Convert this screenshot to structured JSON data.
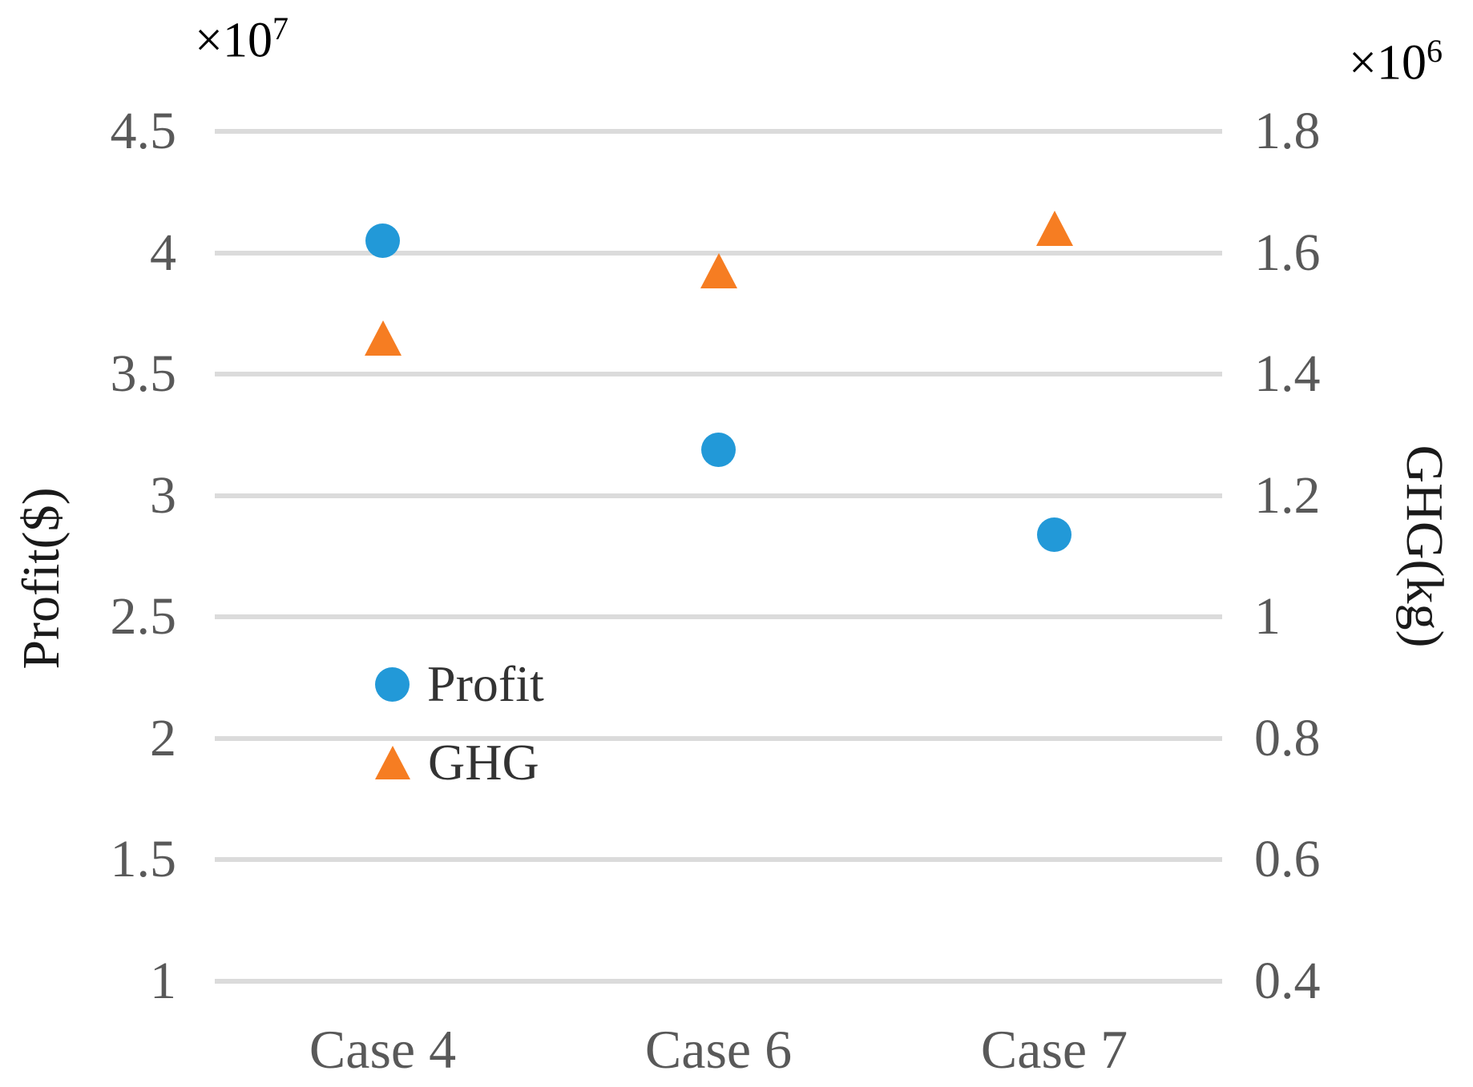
{
  "chart_data": {
    "type": "scatter",
    "categories": [
      "Case 4",
      "Case 6",
      "Case 7"
    ],
    "series": [
      {
        "name": "Profit",
        "axis": "left",
        "marker": "circle",
        "color": "#2299D8",
        "values": [
          4.05,
          3.19,
          2.84
        ],
        "value_scale": "x10^7"
      },
      {
        "name": "GHG",
        "axis": "right",
        "marker": "triangle",
        "color": "#F67D22",
        "values": [
          1.46,
          1.57,
          1.64
        ],
        "value_scale": "x10^6"
      }
    ],
    "axes": {
      "left": {
        "label": "Profit($)",
        "min": 1,
        "max": 4.5,
        "ticks": [
          "4.5",
          "4",
          "3.5",
          "3",
          "2.5",
          "2",
          "1.5",
          "1"
        ],
        "multiplier_base": "×10",
        "multiplier_exp": "7"
      },
      "right": {
        "label": "GHG(kg)",
        "min": 0.4,
        "max": 1.8,
        "ticks": [
          "1.8",
          "1.6",
          "1.4",
          "1.2",
          "1",
          "0.8",
          "0.6",
          "0.4"
        ],
        "multiplier_base": "×10",
        "multiplier_exp": "6"
      }
    },
    "title": "",
    "grid": true,
    "legend": {
      "position": "inside-left-middle",
      "items": [
        "Profit",
        "GHG"
      ]
    },
    "colors": {
      "gridline": "#DBDBDB",
      "tick_text": "#595959",
      "axis_label_text": "#1a1a1a",
      "exponent_text": "#000000",
      "background": "#ffffff"
    }
  }
}
